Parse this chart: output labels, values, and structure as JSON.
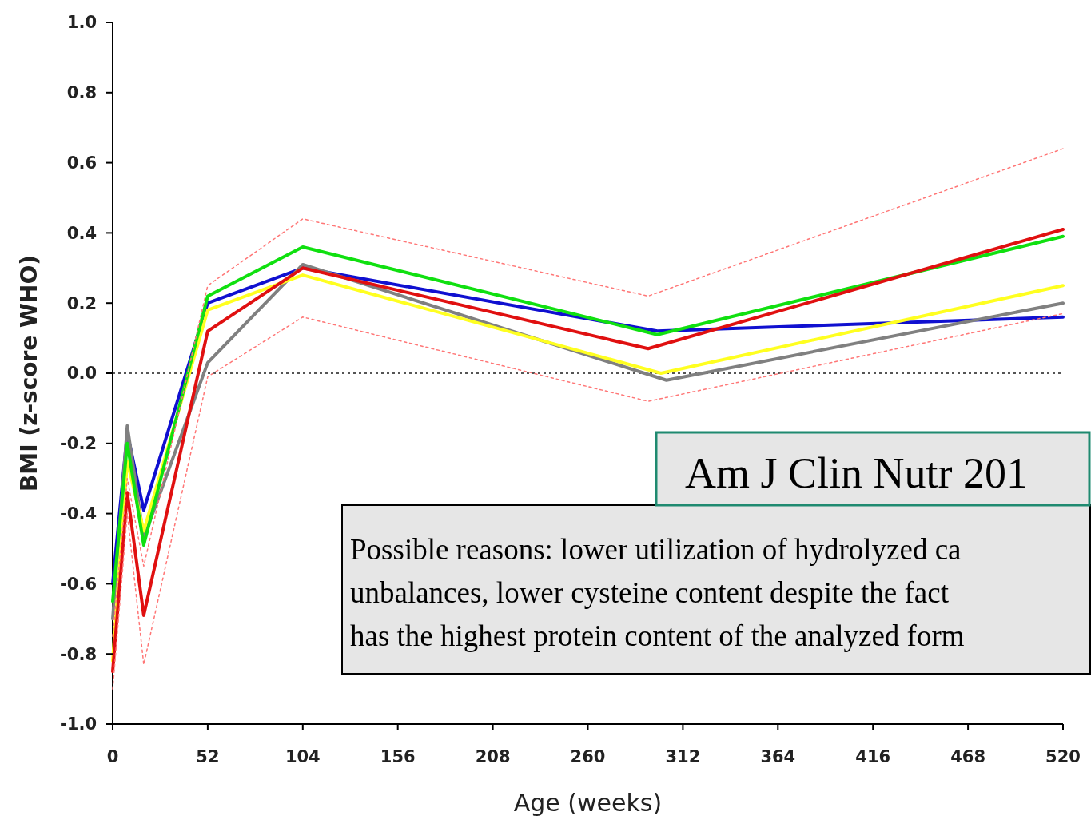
{
  "chart_data": {
    "type": "line",
    "xlabel": "Age (weeks)",
    "ylabel": "BMI (z-score WHO)",
    "xlim": [
      0,
      520
    ],
    "xticks": [
      0,
      52,
      104,
      156,
      208,
      260,
      312,
      364,
      416,
      468,
      520
    ],
    "ylim": [
      -1,
      1
    ],
    "yticks": [
      {
        "value": -1,
        "label": "-1.0"
      },
      {
        "value": -0.8,
        "label": "-0.8"
      },
      {
        "value": -0.6,
        "label": "-0.6"
      },
      {
        "value": -0.4,
        "label": "-0.4"
      },
      {
        "value": -0.2,
        "label": "-0.2"
      },
      {
        "value": 0,
        "label": "0.0"
      },
      {
        "value": 0.2,
        "label": "0.2"
      },
      {
        "value": 0.4,
        "label": "0.4"
      },
      {
        "value": 0.6,
        "label": "0.6"
      },
      {
        "value": 0.8,
        "label": "0.8"
      },
      {
        "value": 1,
        "label": "1.0"
      }
    ],
    "grid": false,
    "marker": "none",
    "ref_lines": [
      {
        "axis": "y",
        "value": 0,
        "color": "#555555",
        "line_style": "dotted"
      }
    ],
    "series": [
      {
        "color": "#ff7777",
        "line_style": "dotted",
        "x": [
          0,
          8,
          17,
          52,
          104,
          293,
          520
        ],
        "values": [
          -0.75,
          -0.3,
          -0.55,
          0.25,
          0.44,
          0.22,
          0.64
        ]
      },
      {
        "color": "#ff7777",
        "line_style": "dotted",
        "x": [
          0,
          8,
          17,
          52,
          104,
          293,
          520
        ],
        "values": [
          -0.9,
          -0.4,
          -0.83,
          -0.01,
          0.16,
          -0.08,
          0.17
        ]
      },
      {
        "color": "#1010d0",
        "line_style": "solid",
        "x": [
          0,
          8,
          17,
          52,
          104,
          298,
          520
        ],
        "values": [
          -0.6,
          -0.17,
          -0.39,
          0.2,
          0.3,
          0.12,
          0.16
        ]
      },
      {
        "color": "#808080",
        "line_style": "solid",
        "x": [
          0,
          8,
          17,
          52,
          104,
          303,
          520
        ],
        "values": [
          -0.7,
          -0.15,
          -0.47,
          0.03,
          0.31,
          -0.02,
          0.2
        ]
      },
      {
        "color": "#ffff20",
        "line_style": "solid",
        "x": [
          0,
          8,
          17,
          52,
          104,
          300,
          520
        ],
        "values": [
          -0.82,
          -0.25,
          -0.45,
          0.18,
          0.28,
          0.0,
          0.25
        ]
      },
      {
        "color": "#10e010",
        "line_style": "solid",
        "x": [
          0,
          8,
          17,
          52,
          104,
          298,
          520
        ],
        "values": [
          -0.65,
          -0.2,
          -0.49,
          0.22,
          0.36,
          0.11,
          0.39
        ]
      },
      {
        "color": "#e01010",
        "line_style": "solid",
        "x": [
          0,
          8,
          17,
          52,
          104,
          293,
          520
        ],
        "values": [
          -0.85,
          -0.34,
          -0.69,
          0.12,
          0.3,
          0.07,
          0.41
        ]
      }
    ],
    "annotations": [
      "Am J Clin Nutr 201",
      "Possible reasons: lower utilization of hydrolyzed ca\nunbalances, lower cysteine content despite the fact\nhas the highest protein content of the analyzed form"
    ]
  }
}
